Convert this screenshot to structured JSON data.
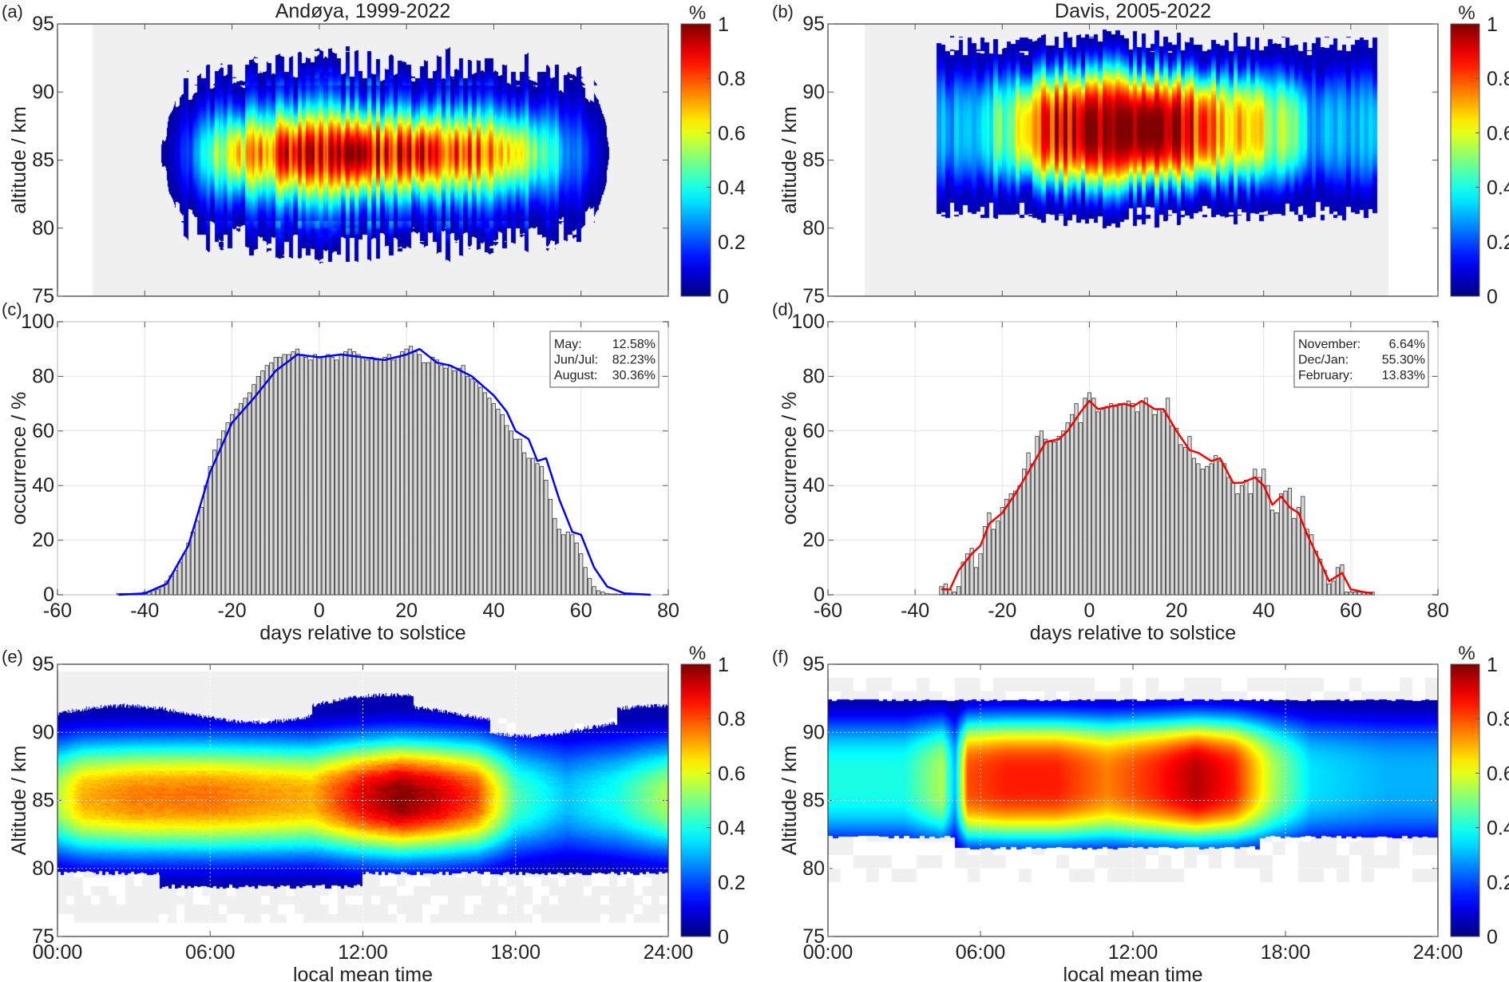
{
  "chart_data": [
    {
      "panel": "(a)",
      "type": "heatmap",
      "title": "Andøya, 1999-2022",
      "xlim": [
        -60,
        80
      ],
      "ylim": [
        75,
        95
      ],
      "ylabel": "altitude / km",
      "yticks": [
        "75",
        "80",
        "85",
        "90",
        "95"
      ],
      "xticks_values": [
        -60,
        -40,
        -20,
        0,
        20,
        40,
        60,
        80
      ],
      "colorbar": {
        "label": "%",
        "ticks": [
          "0",
          "0.2",
          "0.4",
          "0.6",
          "0.8",
          "1"
        ],
        "colormap": "jet"
      },
      "peak_altitude_km": 85.5,
      "coverage_days": [
        -52,
        80
      ]
    },
    {
      "panel": "(b)",
      "type": "heatmap",
      "title": "Davis, 2005-2022",
      "xlim": [
        -60,
        80
      ],
      "ylim": [
        75,
        95
      ],
      "ylabel": "altitude / km",
      "yticks": [
        "75",
        "80",
        "85",
        "90",
        "95"
      ],
      "xticks_values": [
        -60,
        -40,
        -20,
        0,
        20,
        40,
        60,
        80
      ],
      "colorbar": {
        "label": "%",
        "ticks": [
          "0",
          "0.2",
          "0.4",
          "0.6",
          "0.8",
          "1"
        ],
        "colormap": "jet"
      },
      "peak_altitude_km": 87,
      "coverage_days": [
        -51.5,
        68.7
      ]
    },
    {
      "panel": "(c)",
      "type": "bar",
      "xlim": [
        -60,
        80
      ],
      "ylim": [
        0,
        100
      ],
      "xlabel": "days relative to solstice",
      "ylabel": "occurrence / %",
      "xticks": [
        "-60",
        "-40",
        "-20",
        "0",
        "20",
        "40",
        "60",
        "80"
      ],
      "yticks": [
        "0",
        "20",
        "40",
        "60",
        "80",
        "100"
      ],
      "grid": true,
      "bar_color": "#d9d9d9",
      "line_color": "#0000ff",
      "legend": {
        "placement": "top-right",
        "rows": [
          [
            "May:",
            "12.58%"
          ],
          [
            "Jun/Jul:",
            "82.23%"
          ],
          [
            "August:",
            "30.36%"
          ]
        ]
      },
      "x_start": -46,
      "values": [
        0.5,
        0.5,
        0.5,
        0.5,
        0.5,
        0.5,
        1,
        1,
        1.5,
        2,
        3,
        5,
        7,
        9,
        12,
        15,
        19,
        23,
        27,
        32,
        40,
        47,
        53,
        57,
        60,
        63,
        66,
        68,
        70,
        72,
        74,
        77,
        80,
        82,
        84,
        85,
        87,
        87,
        88,
        88,
        89,
        90,
        88,
        87,
        86,
        88,
        87,
        87,
        88,
        87,
        86,
        88,
        89,
        90,
        89,
        88,
        87,
        86,
        87,
        86,
        86,
        87,
        88,
        86,
        87,
        89,
        90,
        91,
        89,
        88,
        85,
        85,
        87,
        86,
        84,
        83,
        84,
        82,
        83,
        84,
        80,
        79,
        78,
        76,
        74,
        72,
        70,
        68,
        66,
        62,
        60,
        57,
        57,
        52,
        50,
        50,
        48,
        47,
        42,
        35,
        28,
        24,
        22,
        23,
        22,
        19,
        15,
        10,
        6,
        3,
        1.5,
        1,
        0.5,
        0.3,
        0.3,
        0.2,
        0.2,
        0.1,
        0.1,
        0.1,
        0.1,
        0.1
      ],
      "smooth": [
        [
          -46,
          0
        ],
        [
          -40,
          0.5
        ],
        [
          -35,
          4
        ],
        [
          -30,
          18
        ],
        [
          -25,
          45
        ],
        [
          -20,
          63
        ],
        [
          -15,
          72
        ],
        [
          -10,
          82
        ],
        [
          -5,
          88
        ],
        [
          0,
          87
        ],
        [
          5,
          88
        ],
        [
          10,
          87
        ],
        [
          15,
          86
        ],
        [
          20,
          88
        ],
        [
          23,
          90
        ],
        [
          27,
          85
        ],
        [
          30,
          84
        ],
        [
          35,
          80
        ],
        [
          40,
          73
        ],
        [
          43,
          67
        ],
        [
          45,
          60
        ],
        [
          48,
          57
        ],
        [
          50,
          49
        ],
        [
          52,
          50
        ],
        [
          55,
          35
        ],
        [
          58,
          23
        ],
        [
          60,
          22
        ],
        [
          63,
          10
        ],
        [
          66,
          3
        ],
        [
          70,
          0.5
        ],
        [
          76,
          0
        ]
      ]
    },
    {
      "panel": "(d)",
      "type": "bar",
      "xlim": [
        -60,
        80
      ],
      "ylim": [
        0,
        100
      ],
      "xlabel": "days relative to solstice",
      "ylabel": "occurrence / %",
      "xticks": [
        "-60",
        "-40",
        "-20",
        "0",
        "20",
        "40",
        "60",
        "80"
      ],
      "yticks": [
        "0",
        "20",
        "40",
        "60",
        "80",
        "100"
      ],
      "grid": true,
      "bar_color": "#d9d9d9",
      "line_color": "#ff0000",
      "legend": {
        "placement": "top-right",
        "rows": [
          [
            "November:",
            "6.64%"
          ],
          [
            "Dec/Jan:",
            "55.30%"
          ],
          [
            "February:",
            "13.83%"
          ]
        ]
      },
      "x_start": -34,
      "values": [
        3,
        4,
        2,
        1,
        3,
        12,
        15,
        17,
        10,
        15,
        25,
        30,
        24,
        27,
        32,
        35,
        37,
        38,
        40,
        46,
        52,
        48,
        58,
        60,
        57,
        56,
        56,
        58,
        60,
        63,
        66,
        70,
        63,
        72,
        74,
        72,
        67,
        68,
        69,
        70,
        69,
        70,
        70,
        71,
        70,
        67,
        71,
        72,
        69,
        66,
        68,
        67,
        72,
        62,
        61,
        55,
        54,
        58,
        50,
        48,
        46,
        47,
        48,
        51,
        49,
        48,
        43,
        41,
        37,
        40,
        42,
        37,
        46,
        43,
        46,
        40,
        31,
        30,
        37,
        38,
        39,
        28,
        32,
        36,
        24,
        22,
        16,
        13,
        9,
        4,
        5,
        10,
        11,
        1,
        1,
        1,
        1,
        1,
        1,
        1
      ],
      "smooth": [
        [
          -34,
          2
        ],
        [
          -32,
          2
        ],
        [
          -30,
          9
        ],
        [
          -27,
          15
        ],
        [
          -25,
          18
        ],
        [
          -23,
          26
        ],
        [
          -20,
          30
        ],
        [
          -17,
          37
        ],
        [
          -14,
          45
        ],
        [
          -10,
          56
        ],
        [
          -7,
          57
        ],
        [
          -5,
          60
        ],
        [
          -2,
          67
        ],
        [
          0,
          71
        ],
        [
          2,
          68
        ],
        [
          5,
          69
        ],
        [
          8,
          70
        ],
        [
          10,
          69
        ],
        [
          12,
          71
        ],
        [
          15,
          68
        ],
        [
          17,
          68
        ],
        [
          20,
          60
        ],
        [
          23,
          53
        ],
        [
          25,
          52
        ],
        [
          28,
          49
        ],
        [
          30,
          50
        ],
        [
          33,
          41
        ],
        [
          35,
          41
        ],
        [
          38,
          43
        ],
        [
          40,
          40
        ],
        [
          42,
          33
        ],
        [
          44,
          36
        ],
        [
          46,
          32
        ],
        [
          48,
          30
        ],
        [
          50,
          22
        ],
        [
          53,
          12
        ],
        [
          55,
          5
        ],
        [
          58,
          8
        ],
        [
          60,
          2
        ],
        [
          63,
          1
        ],
        [
          65,
          0.5
        ]
      ]
    },
    {
      "panel": "(e)",
      "type": "heatmap",
      "xlim": [
        0,
        24
      ],
      "ylim": [
        75,
        95
      ],
      "xlabel": "local mean time",
      "ylabel": "Altitude / km",
      "xticks": [
        "00:00",
        "06:00",
        "12:00",
        "18:00",
        "24:00"
      ],
      "yticks": [
        "75",
        "80",
        "85",
        "90",
        "95"
      ],
      "colorbar": {
        "label": "%",
        "ticks": [
          "0",
          "0.2",
          "0.4",
          "0.6",
          "0.8",
          "1"
        ],
        "colormap": "jet"
      },
      "peak_altitude_km": 85.2,
      "peak_occurrence_by_hour": [
        [
          0,
          0.55
        ],
        [
          1,
          0.7
        ],
        [
          3,
          0.75
        ],
        [
          6,
          0.76
        ],
        [
          8,
          0.73
        ],
        [
          10,
          0.7
        ],
        [
          12,
          0.9
        ],
        [
          13.5,
          1
        ],
        [
          15,
          0.92
        ],
        [
          16.5,
          0.8
        ],
        [
          18,
          0.45
        ],
        [
          20,
          0.32
        ],
        [
          22,
          0.4
        ],
        [
          24,
          0.55
        ]
      ]
    },
    {
      "panel": "(f)",
      "type": "heatmap",
      "xlim": [
        0,
        24
      ],
      "ylim": [
        75,
        95
      ],
      "xlabel": "local mean time",
      "ylabel": "Altitude / km",
      "xticks": [
        "00:00",
        "06:00",
        "12:00",
        "18:00",
        "24:00"
      ],
      "yticks": [
        "75",
        "80",
        "85",
        "90",
        "95"
      ],
      "colorbar": {
        "label": "%",
        "ticks": [
          "0",
          "0.2",
          "0.4",
          "0.6",
          "0.8",
          "1"
        ],
        "colormap": "jet"
      },
      "peak_altitude_km": 86.8,
      "peak_occurrence_by_hour": [
        [
          0,
          0.4
        ],
        [
          3,
          0.4
        ],
        [
          4.5,
          0.55
        ],
        [
          5,
          0.3
        ],
        [
          5.5,
          0.8
        ],
        [
          7,
          0.85
        ],
        [
          9,
          0.85
        ],
        [
          11,
          0.75
        ],
        [
          13,
          0.85
        ],
        [
          14.5,
          0.95
        ],
        [
          16,
          0.85
        ],
        [
          17.5,
          0.55
        ],
        [
          19,
          0.35
        ],
        [
          22,
          0.3
        ],
        [
          24,
          0.3
        ]
      ]
    }
  ]
}
